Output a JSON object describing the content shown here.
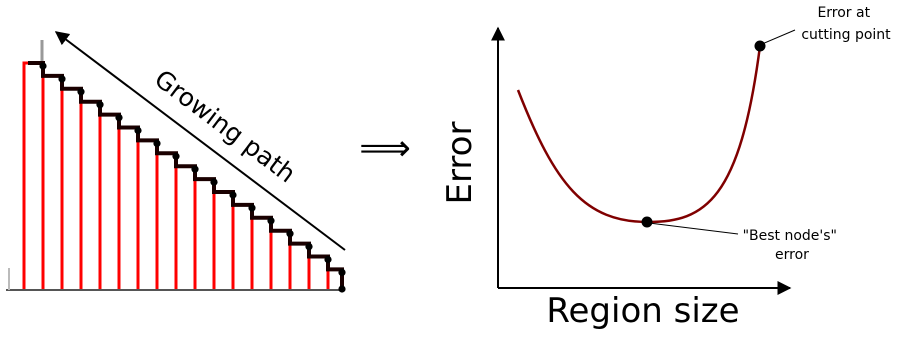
{
  "left_panel": {
    "path_label": "Growing path"
  },
  "middle": {
    "implies_symbol": "⟹"
  },
  "right_panel": {
    "x_axis_label": "Region size",
    "y_axis_label": "Error",
    "annotation_cut": [
      "Error at",
      "cutting point"
    ],
    "annotation_best": [
      "\"Best node's\"",
      "error"
    ]
  },
  "colors": {
    "staircase": "#ff0000",
    "path": "#1a0000",
    "curve": "#800000",
    "axes": "#000000"
  }
}
